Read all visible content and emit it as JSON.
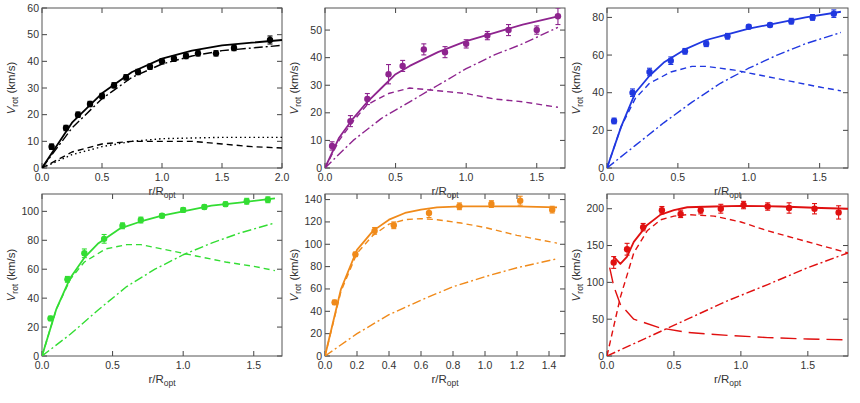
{
  "chart_data": [
    {
      "type": "scatter",
      "color": "#000000",
      "x_label": {
        "text": "r/R",
        "subscript": "opt"
      },
      "y_label": {
        "text": "V",
        "subscript": "rot",
        "suffix": " (km/s)"
      },
      "xlim": [
        0,
        2
      ],
      "ylim": [
        0,
        60
      ],
      "xticks": [
        {
          "value": 0,
          "label": "0.0"
        },
        {
          "value": 0.5,
          "label": "0.5"
        },
        {
          "value": 1,
          "label": "1.0"
        },
        {
          "value": 1.5,
          "label": "1.5"
        },
        {
          "value": 2,
          "label": "2.0"
        }
      ],
      "yticks": [
        0,
        10,
        20,
        30,
        40,
        50,
        60
      ],
      "series": [
        {
          "type": "scatter",
          "marker": "circle",
          "x": [
            0.08,
            0.2,
            0.3,
            0.4,
            0.5,
            0.6,
            0.7,
            0.8,
            0.9,
            1.0,
            1.1,
            1.2,
            1.3,
            1.45,
            1.6,
            1.9
          ],
          "values": [
            8,
            15,
            20,
            24,
            27,
            31,
            34,
            36,
            38,
            40,
            41,
            42,
            43,
            43,
            45,
            48
          ],
          "errors": [
            1,
            1,
            1,
            1,
            1,
            1,
            1,
            1,
            1,
            1,
            1,
            1,
            1,
            1,
            1,
            1.5
          ]
        },
        {
          "type": "line",
          "line_style": "solid",
          "x": [
            0,
            0.25,
            0.5,
            0.75,
            1,
            1.25,
            1.5,
            1.75,
            2
          ],
          "values": [
            0,
            17,
            28,
            36,
            41,
            44,
            46,
            47,
            48
          ]
        },
        {
          "type": "line",
          "line_style": "dashdot",
          "x": [
            0,
            0.25,
            0.5,
            0.75,
            1,
            1.25,
            1.5,
            1.75,
            2
          ],
          "values": [
            0,
            15,
            26,
            34,
            39,
            42,
            44,
            45,
            46
          ]
        },
        {
          "type": "line",
          "line_style": "dotted",
          "x": [
            0,
            0.25,
            0.5,
            0.75,
            1,
            1.5,
            2
          ],
          "values": [
            0,
            5,
            8,
            10,
            11,
            11.5,
            11.5
          ]
        },
        {
          "type": "line",
          "line_style": "dashed",
          "x": [
            0,
            0.25,
            0.5,
            0.75,
            1,
            1.25,
            1.5,
            1.75,
            2
          ],
          "values": [
            0,
            6,
            9,
            10,
            10,
            10,
            9,
            8,
            7.5
          ]
        }
      ]
    },
    {
      "type": "scatter",
      "color": "#8e248e",
      "x_label": {
        "text": "r/R",
        "subscript": "opt"
      },
      "y_label": {
        "text": "V",
        "subscript": "rot",
        "suffix": " (km/s)"
      },
      "xlim": [
        0,
        1.7
      ],
      "ylim": [
        0,
        58
      ],
      "xticks": [
        {
          "value": 0,
          "label": "0.0"
        },
        {
          "value": 0.5,
          "label": "0.5"
        },
        {
          "value": 1,
          "label": "1.0"
        },
        {
          "value": 1.5,
          "label": "1.5"
        }
      ],
      "yticks": [
        0,
        10,
        20,
        30,
        40,
        50
      ],
      "series": [
        {
          "type": "scatter",
          "marker": "circle",
          "x": [
            0.05,
            0.18,
            0.3,
            0.45,
            0.55,
            0.7,
            0.85,
            1.0,
            1.15,
            1.3,
            1.5,
            1.65
          ],
          "values": [
            8,
            17,
            25,
            34,
            37,
            43,
            42,
            45,
            48,
            50,
            50,
            55
          ],
          "errors": [
            1.5,
            2,
            2,
            3.5,
            2,
            2,
            2,
            1.5,
            1.5,
            2,
            1.5,
            3
          ]
        },
        {
          "type": "line",
          "line_style": "solid",
          "x": [
            0,
            0.1,
            0.2,
            0.3,
            0.4,
            0.5,
            0.6,
            0.8,
            1.0,
            1.2,
            1.4,
            1.65
          ],
          "values": [
            0,
            11,
            18,
            24,
            29,
            34,
            37,
            42,
            46,
            49,
            52,
            55
          ]
        },
        {
          "type": "line",
          "line_style": "dashed",
          "x": [
            0,
            0.1,
            0.2,
            0.3,
            0.45,
            0.6,
            0.8,
            1.0,
            1.2,
            1.4,
            1.65
          ],
          "values": [
            0,
            10,
            17,
            23,
            27,
            29,
            28,
            27,
            25,
            24,
            22
          ]
        },
        {
          "type": "line",
          "line_style": "dashdot",
          "x": [
            0,
            0.2,
            0.4,
            0.6,
            0.8,
            1.0,
            1.2,
            1.4,
            1.65
          ],
          "values": [
            0,
            10,
            18,
            24,
            30,
            36,
            41,
            45,
            51
          ]
        }
      ]
    },
    {
      "type": "scatter",
      "color": "#2038e0",
      "x_label": {
        "text": "r/R",
        "subscript": "opt"
      },
      "y_label": {
        "text": "V",
        "subscript": "rot",
        "suffix": " (km/s)"
      },
      "xlim": [
        0,
        1.7
      ],
      "ylim": [
        0,
        85
      ],
      "xticks": [
        {
          "value": 0,
          "label": "0.0"
        },
        {
          "value": 0.5,
          "label": "0.5"
        },
        {
          "value": 1,
          "label": "1.0"
        },
        {
          "value": 1.5,
          "label": "1.5"
        }
      ],
      "yticks": [
        0,
        20,
        40,
        60,
        80
      ],
      "series": [
        {
          "type": "scatter",
          "marker": "circle",
          "x": [
            0.05,
            0.18,
            0.3,
            0.45,
            0.55,
            0.7,
            0.85,
            1.0,
            1.15,
            1.3,
            1.45,
            1.6
          ],
          "values": [
            25,
            40,
            51,
            57,
            62,
            66,
            70,
            75,
            76,
            78,
            80,
            82
          ],
          "errors": [
            1.5,
            2,
            2,
            2,
            1.5,
            1.5,
            1.5,
            1,
            1,
            1.5,
            1.5,
            2
          ]
        },
        {
          "type": "line",
          "line_style": "solid",
          "x": [
            0,
            0.1,
            0.2,
            0.3,
            0.4,
            0.55,
            0.7,
            0.85,
            1.0,
            1.2,
            1.4,
            1.65
          ],
          "values": [
            0,
            22,
            40,
            49,
            56,
            63,
            68,
            71,
            74,
            77,
            80,
            83
          ]
        },
        {
          "type": "line",
          "line_style": "dashed",
          "x": [
            0,
            0.1,
            0.2,
            0.3,
            0.45,
            0.6,
            0.7,
            0.9,
            1.1,
            1.3,
            1.5,
            1.65
          ],
          "values": [
            0,
            22,
            37,
            45,
            51,
            54,
            54,
            52,
            49,
            46,
            43,
            41
          ]
        },
        {
          "type": "line",
          "line_style": "dashdot",
          "x": [
            0,
            0.2,
            0.4,
            0.6,
            0.8,
            1.0,
            1.2,
            1.4,
            1.65
          ],
          "values": [
            0,
            12,
            24,
            35,
            45,
            53,
            60,
            66,
            72
          ]
        }
      ]
    },
    {
      "type": "scatter",
      "color": "#33dd33",
      "x_label": {
        "text": "r/R",
        "subscript": "opt"
      },
      "y_label": {
        "text": "V",
        "subscript": "rot",
        "suffix": " (km/s)"
      },
      "xlim": [
        0,
        1.7
      ],
      "ylim": [
        0,
        112
      ],
      "xticks": [
        {
          "value": 0,
          "label": "0.0"
        },
        {
          "value": 0.5,
          "label": "0.5"
        },
        {
          "value": 1,
          "label": "1.0"
        },
        {
          "value": 1.5,
          "label": "1.5"
        }
      ],
      "yticks": [
        0,
        20,
        40,
        60,
        80,
        100
      ],
      "series": [
        {
          "type": "scatter",
          "marker": "circle",
          "x": [
            0.06,
            0.18,
            0.3,
            0.44,
            0.57,
            0.7,
            0.85,
            1.0,
            1.15,
            1.3,
            1.45,
            1.6
          ],
          "values": [
            26,
            53,
            71,
            81,
            90,
            94,
            97,
            101,
            103,
            105,
            107,
            108
          ],
          "errors": [
            1.5,
            2,
            3,
            3,
            2,
            2,
            1.5,
            1.5,
            1.5,
            1.5,
            2,
            2
          ]
        },
        {
          "type": "line",
          "line_style": "solid",
          "x": [
            0,
            0.1,
            0.2,
            0.3,
            0.4,
            0.55,
            0.7,
            0.85,
            1.0,
            1.2,
            1.4,
            1.65
          ],
          "values": [
            0,
            32,
            54,
            68,
            78,
            88,
            93,
            97,
            100,
            104,
            106,
            109
          ]
        },
        {
          "type": "line",
          "line_style": "dashed",
          "x": [
            0,
            0.1,
            0.2,
            0.3,
            0.45,
            0.6,
            0.7,
            0.9,
            1.1,
            1.3,
            1.5,
            1.65
          ],
          "values": [
            0,
            32,
            53,
            65,
            74,
            77,
            77,
            73,
            69,
            65,
            62,
            59
          ]
        },
        {
          "type": "line",
          "line_style": "dashdot",
          "x": [
            0,
            0.2,
            0.4,
            0.6,
            0.8,
            1.0,
            1.2,
            1.4,
            1.65
          ],
          "values": [
            0,
            15,
            32,
            48,
            60,
            70,
            78,
            85,
            92
          ]
        }
      ]
    },
    {
      "type": "scatter",
      "color": "#f08a1a",
      "x_label": {
        "text": "r/R",
        "subscript": "opt"
      },
      "y_label": {
        "text": "V",
        "subscript": "rot",
        "suffix": " (km/s)"
      },
      "xlim": [
        0,
        1.5
      ],
      "ylim": [
        0,
        145
      ],
      "xticks": [
        {
          "value": 0,
          "label": "0.0"
        },
        {
          "value": 0.2,
          "label": "0.2"
        },
        {
          "value": 0.4,
          "label": "0.4"
        },
        {
          "value": 0.6,
          "label": "0.6"
        },
        {
          "value": 0.8,
          "label": "0.8"
        },
        {
          "value": 1,
          "label": "1.0"
        },
        {
          "value": 1.2,
          "label": "1.2"
        },
        {
          "value": 1.4,
          "label": "1.4"
        }
      ],
      "yticks": [
        0,
        20,
        40,
        60,
        80,
        100,
        120,
        140
      ],
      "series": [
        {
          "type": "scatter",
          "marker": "circle",
          "x": [
            0.06,
            0.19,
            0.31,
            0.43,
            0.65,
            0.84,
            1.04,
            1.22,
            1.42
          ],
          "values": [
            48,
            91,
            112,
            117,
            128,
            134,
            136,
            139,
            131
          ],
          "errors": [
            2,
            2,
            3,
            3,
            4,
            3,
            3,
            4,
            3
          ]
        },
        {
          "type": "line",
          "line_style": "solid",
          "x": [
            0,
            0.1,
            0.2,
            0.3,
            0.4,
            0.5,
            0.6,
            0.7,
            0.85,
            1.0,
            1.2,
            1.45
          ],
          "values": [
            0,
            60,
            95,
            112,
            122,
            128,
            131,
            133,
            134,
            134,
            134,
            133
          ]
        },
        {
          "type": "line",
          "line_style": "dashed",
          "x": [
            0,
            0.1,
            0.2,
            0.3,
            0.4,
            0.5,
            0.6,
            0.7,
            0.85,
            1.0,
            1.2,
            1.45
          ],
          "values": [
            0,
            58,
            92,
            108,
            118,
            122,
            123,
            122,
            119,
            115,
            108,
            101
          ]
        },
        {
          "type": "line",
          "line_style": "dashdot",
          "x": [
            0,
            0.2,
            0.4,
            0.6,
            0.8,
            1.0,
            1.2,
            1.45
          ],
          "values": [
            0,
            20,
            37,
            50,
            62,
            71,
            79,
            87
          ]
        }
      ]
    },
    {
      "type": "scatter",
      "color": "#e01010",
      "x_label": {
        "text": "r/R",
        "subscript": "opt"
      },
      "y_label": {
        "text": "V",
        "subscript": "rot",
        "suffix": " (km/s)"
      },
      "xlim": [
        0,
        1.8
      ],
      "ylim": [
        0,
        220
      ],
      "xticks": [
        {
          "value": 0,
          "label": "0.0"
        },
        {
          "value": 0.5,
          "label": "0.5"
        },
        {
          "value": 1,
          "label": "1.0"
        },
        {
          "value": 1.5,
          "label": "1.5"
        }
      ],
      "yticks": [
        0,
        50,
        100,
        150,
        200
      ],
      "series": [
        {
          "type": "scatter",
          "marker": "circle",
          "x": [
            0.05,
            0.15,
            0.27,
            0.41,
            0.55,
            0.7,
            0.85,
            1.02,
            1.2,
            1.36,
            1.55,
            1.73
          ],
          "values": [
            127,
            145,
            175,
            198,
            193,
            198,
            200,
            205,
            203,
            201,
            200,
            195
          ],
          "errors": [
            8,
            8,
            5,
            5,
            5,
            5,
            6,
            5,
            5,
            7,
            7,
            9
          ]
        },
        {
          "type": "line",
          "line_style": "solid",
          "x": [
            0.05,
            0.1,
            0.15,
            0.2,
            0.3,
            0.4,
            0.5,
            0.6,
            0.8,
            1.0,
            1.3,
            1.6,
            1.8
          ],
          "values": [
            135,
            125,
            135,
            155,
            178,
            192,
            198,
            202,
            203,
            204,
            203,
            201,
            200
          ]
        },
        {
          "type": "line",
          "line_style": "dashed",
          "x": [
            0,
            0.1,
            0.2,
            0.3,
            0.4,
            0.5,
            0.6,
            0.8,
            1.0,
            1.2,
            1.4,
            1.6,
            1.8
          ],
          "values": [
            0,
            80,
            140,
            170,
            185,
            190,
            192,
            190,
            182,
            170,
            160,
            150,
            140
          ]
        },
        {
          "type": "line",
          "line_style": "longdash",
          "x": [
            0.02,
            0.05,
            0.1,
            0.2,
            0.4,
            0.6,
            0.9,
            1.2,
            1.5,
            1.8
          ],
          "values": [
            120,
            95,
            70,
            50,
            38,
            32,
            28,
            25,
            23,
            22
          ]
        },
        {
          "type": "line",
          "line_style": "dashdot",
          "x": [
            0,
            0.3,
            0.6,
            0.9,
            1.2,
            1.5,
            1.8
          ],
          "values": [
            0,
            25,
            50,
            75,
            97,
            120,
            140
          ]
        }
      ]
    }
  ]
}
